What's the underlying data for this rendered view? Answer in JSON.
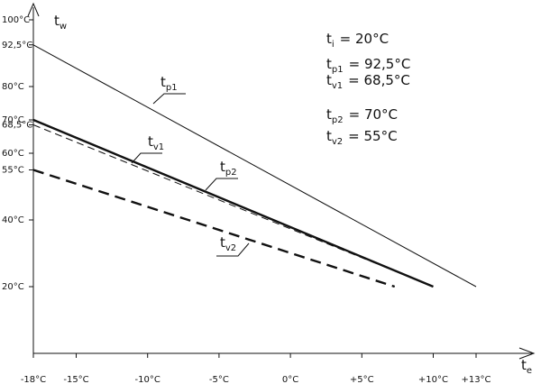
{
  "chart_data": {
    "type": "line",
    "title": "",
    "xlabel": "te",
    "ylabel": "tw",
    "axis_labels": {
      "y": {
        "base": "t",
        "sub": "w"
      },
      "x": {
        "base": "t",
        "sub": "e"
      }
    },
    "xlim": [
      -18,
      14
    ],
    "ylim": [
      0,
      100
    ],
    "x_ticks": [
      {
        "value": -18,
        "label": "-18°C"
      },
      {
        "value": -15,
        "label": "-15°C"
      },
      {
        "value": -10,
        "label": "-10°C"
      },
      {
        "value": -5,
        "label": "-5°C"
      },
      {
        "value": 0,
        "label": "0°C"
      },
      {
        "value": 5,
        "label": "+5°C"
      },
      {
        "value": 10,
        "label": "+10°C"
      },
      {
        "value": 13,
        "label": "+13°C"
      }
    ],
    "y_ticks": [
      {
        "value": 100,
        "label": "100°C"
      },
      {
        "value": 92.5,
        "label": "92,5°C"
      },
      {
        "value": 80,
        "label": "80°C"
      },
      {
        "value": 70,
        "label": "70°C"
      },
      {
        "value": 68.5,
        "label": "68,5°C"
      },
      {
        "value": 60,
        "label": "60°C"
      },
      {
        "value": 55,
        "label": "55°C"
      },
      {
        "value": 40,
        "label": "40°C"
      },
      {
        "value": 20,
        "label": "20°C"
      }
    ],
    "series": [
      {
        "name": "tp1",
        "label_base": "t",
        "label_sub": "p1",
        "style": "thin-solid",
        "x": [
          -18,
          13
        ],
        "y": [
          92.5,
          20
        ]
      },
      {
        "name": "tv1",
        "label_base": "t",
        "label_sub": "v1",
        "style": "thin-dashed",
        "x": [
          -18,
          10
        ],
        "y": [
          68.5,
          20
        ]
      },
      {
        "name": "tp2",
        "label_base": "t",
        "label_sub": "p2",
        "style": "bold-solid",
        "x": [
          -18,
          10
        ],
        "y": [
          70,
          20
        ]
      },
      {
        "name": "tv2",
        "label_base": "t",
        "label_sub": "v2",
        "style": "bold-dashed",
        "x": [
          -18,
          7.3
        ],
        "y": [
          55,
          20
        ]
      }
    ],
    "legend_text": [
      {
        "base": "t",
        "sub": "i",
        "value": "= 20°C"
      },
      {
        "base": "t",
        "sub": "p1",
        "value": "= 92,5°C"
      },
      {
        "base": "t",
        "sub": "v1",
        "value": "= 68,5°C"
      },
      {
        "base": "t",
        "sub": "p2",
        "value": "= 70°C"
      },
      {
        "base": "t",
        "sub": "v2",
        "value": "= 55°C"
      }
    ]
  }
}
